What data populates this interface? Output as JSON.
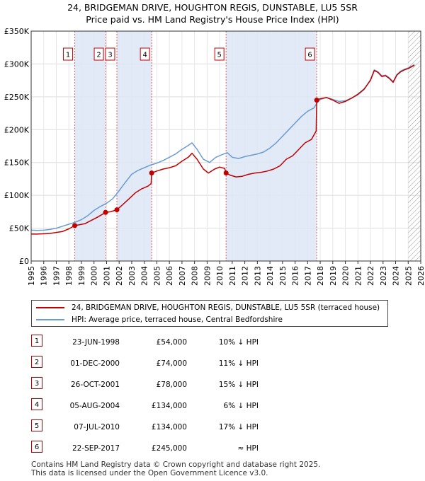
{
  "title_line1": "24, BRIDGEMAN DRIVE, HOUGHTON REGIS, DUNSTABLE, LU5 5SR",
  "title_line2": "Price paid vs. HM Land Registry's House Price Index (HPI)",
  "colors": {
    "property": "#c00000",
    "hpi": "#6a9bd1",
    "shade": "#dce6f5",
    "vline": "#e06060"
  },
  "legend": {
    "property": "24, BRIDGEMAN DRIVE, HOUGHTON REGIS, DUNSTABLE, LU5 5SR (terraced house)",
    "hpi": "HPI: Average price, terraced house, Central Bedfordshire"
  },
  "sales": [
    {
      "n": "1",
      "date": "23-JUN-1998",
      "price": "£54,000",
      "hpi": "10% ↓ HPI"
    },
    {
      "n": "2",
      "date": "01-DEC-2000",
      "price": "£74,000",
      "hpi": "11% ↓ HPI"
    },
    {
      "n": "3",
      "date": "26-OCT-2001",
      "price": "£78,000",
      "hpi": "15% ↓ HPI"
    },
    {
      "n": "4",
      "date": "05-AUG-2004",
      "price": "£134,000",
      "hpi": "6% ↓ HPI"
    },
    {
      "n": "5",
      "date": "07-JUL-2010",
      "price": "£134,000",
      "hpi": "17% ↓ HPI"
    },
    {
      "n": "6",
      "date": "22-SEP-2017",
      "price": "£245,000",
      "hpi": "≈ HPI"
    }
  ],
  "footer": {
    "line1": "Contains HM Land Registry data © Crown copyright and database right 2025.",
    "line2": "This data is licensed under the Open Government Licence v3.0."
  },
  "chart_data": {
    "type": "line",
    "xlim": [
      1995,
      2026
    ],
    "ylim": [
      0,
      350000
    ],
    "yticks": [
      0,
      50000,
      100000,
      150000,
      200000,
      250000,
      300000,
      350000
    ],
    "ytick_labels": [
      "£0",
      "£50K",
      "£100K",
      "£150K",
      "£200K",
      "£250K",
      "£300K",
      "£350K"
    ],
    "xticks": [
      1995,
      1996,
      1997,
      1998,
      1999,
      2000,
      2001,
      2002,
      2003,
      2004,
      2005,
      2006,
      2007,
      2008,
      2009,
      2010,
      2011,
      2012,
      2013,
      2014,
      2015,
      2016,
      2017,
      2018,
      2019,
      2020,
      2021,
      2022,
      2023,
      2024,
      2025,
      2026
    ],
    "xtick_labels": [
      "1995",
      "1996",
      "1997",
      "1998",
      "1999",
      "2000",
      "2001",
      "2002",
      "2003",
      "2004",
      "2005",
      "2006",
      "2007",
      "2008",
      "2009",
      "2010",
      "2011",
      "2012",
      "2013",
      "2014",
      "2015",
      "2016",
      "2017",
      "2018",
      "2019",
      "2020",
      "2021",
      "2022",
      "2023",
      "2024",
      "2025",
      "2026"
    ],
    "shaded_spans": [
      [
        1998.47,
        2000.92
      ],
      [
        2001.82,
        2004.59
      ],
      [
        2010.51,
        2017.72
      ]
    ],
    "hatch_from": 2025.0,
    "sale_markers": [
      {
        "label": "1",
        "x": 1998.47,
        "y": 54000
      },
      {
        "label": "2",
        "x": 2000.92,
        "y": 74000
      },
      {
        "label": "3",
        "x": 2001.82,
        "y": 78000
      },
      {
        "label": "4",
        "x": 2004.59,
        "y": 134000
      },
      {
        "label": "5",
        "x": 2010.51,
        "y": 134000
      },
      {
        "label": "6",
        "x": 2017.72,
        "y": 245000
      }
    ],
    "series": [
      {
        "name": "24, BRIDGEMAN DRIVE, HOUGHTON REGIS, DUNSTABLE, LU5 5SR (terraced house)",
        "x": [
          1995,
          1995.5,
          1996,
          1996.5,
          1997,
          1997.5,
          1998,
          1998.47,
          1998.8,
          1999.3,
          1999.8,
          2000.3,
          2000.92,
          2001.3,
          2001.82,
          2002.3,
          2002.8,
          2003.3,
          2003.8,
          2004.3,
          2004.55,
          2004.59,
          2005,
          2005.5,
          2006,
          2006.5,
          2007,
          2007.5,
          2007.8,
          2008.2,
          2008.7,
          2009.1,
          2009.6,
          2010,
          2010.4,
          2010.51,
          2010.8,
          2011.3,
          2011.8,
          2012.3,
          2012.8,
          2013.3,
          2013.8,
          2014.3,
          2014.8,
          2015.3,
          2015.8,
          2016.3,
          2016.8,
          2017.3,
          2017.68,
          2017.72,
          2018,
          2018.5,
          2019,
          2019.5,
          2020,
          2020.5,
          2021,
          2021.5,
          2022,
          2022.3,
          2022.6,
          2022.9,
          2023.2,
          2023.5,
          2023.8,
          2024.1,
          2024.4,
          2024.7,
          2025,
          2025.3,
          2025.5
        ],
        "y": [
          41000,
          41000,
          41500,
          42000,
          43500,
          45000,
          49000,
          54000,
          55000,
          57000,
          62000,
          67000,
          74000,
          75000,
          78000,
          86000,
          95000,
          104000,
          110000,
          114000,
          118000,
          134000,
          137000,
          140000,
          142000,
          145000,
          152000,
          158000,
          164000,
          155000,
          140000,
          134000,
          140000,
          143000,
          141000,
          134000,
          131000,
          128000,
          129000,
          132000,
          134000,
          135000,
          137000,
          140000,
          145000,
          155000,
          160000,
          170000,
          180000,
          185000,
          198000,
          245000,
          247000,
          249000,
          245000,
          240000,
          243000,
          248000,
          254000,
          262000,
          275000,
          290000,
          287000,
          281000,
          282000,
          278000,
          272000,
          283000,
          288000,
          291000,
          293000,
          296000,
          298000
        ]
      },
      {
        "name": "HPI: Average price, terraced house, Central Bedfordshire",
        "x": [
          1995,
          1995.5,
          1996,
          1996.5,
          1997,
          1997.5,
          1998,
          1998.5,
          1999,
          1999.5,
          2000,
          2000.5,
          2001,
          2001.5,
          2002,
          2002.5,
          2003,
          2003.5,
          2004,
          2004.5,
          2005,
          2005.5,
          2006,
          2006.5,
          2007,
          2007.5,
          2007.8,
          2008.2,
          2008.7,
          2009.2,
          2009.7,
          2010.2,
          2010.6,
          2011,
          2011.5,
          2012,
          2012.5,
          2013,
          2013.5,
          2014,
          2014.5,
          2015,
          2015.5,
          2016,
          2016.5,
          2017,
          2017.5,
          2017.72,
          2018,
          2018.5,
          2019,
          2019.5,
          2020,
          2020.5,
          2021,
          2021.5,
          2022,
          2022.3,
          2022.6,
          2022.9,
          2023.2,
          2023.5,
          2023.8,
          2024.1,
          2024.4,
          2024.7,
          2025,
          2025.3,
          2025.5
        ],
        "y": [
          47000,
          46500,
          47000,
          48000,
          50000,
          53000,
          56000,
          59000,
          63000,
          69000,
          77000,
          83000,
          88000,
          95000,
          107000,
          120000,
          132000,
          138000,
          142000,
          146000,
          149000,
          153000,
          158000,
          163000,
          170000,
          176000,
          180000,
          170000,
          155000,
          150000,
          158000,
          162000,
          165000,
          158000,
          156000,
          159000,
          161000,
          163000,
          166000,
          172000,
          180000,
          190000,
          200000,
          210000,
          220000,
          228000,
          233000,
          240000,
          246000,
          249000,
          246000,
          243000,
          244000,
          248000,
          253000,
          261000,
          276000,
          291000,
          288000,
          282000,
          283000,
          279000,
          273000,
          284000,
          289000,
          292000,
          294000,
          297000,
          299000
        ]
      }
    ]
  }
}
